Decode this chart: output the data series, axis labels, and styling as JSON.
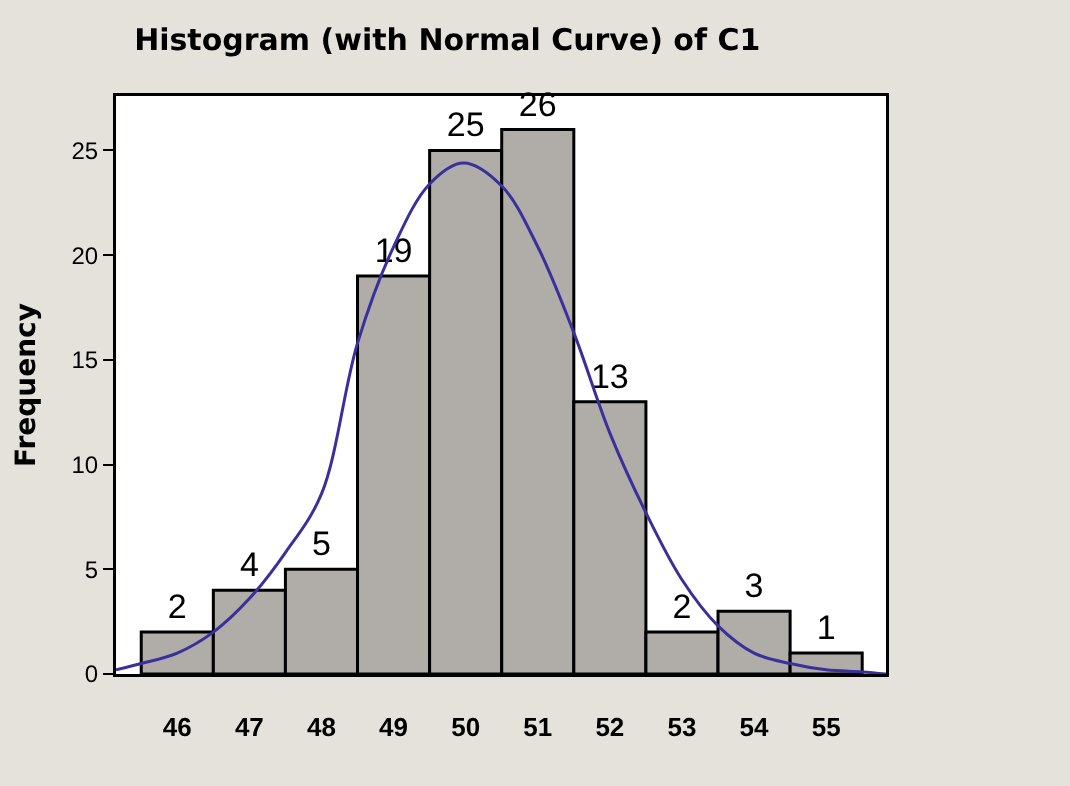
{
  "chart_data": {
    "type": "histogram",
    "title": "Histogram (with Normal Curve) of C1",
    "ylabel": "Frequency",
    "bins": [
      45.5,
      46.5,
      47.5,
      48.5,
      49.5,
      50.5,
      51.5,
      52.5,
      53.5,
      54.5,
      55.5
    ],
    "values": [
      2,
      4,
      5,
      19,
      25,
      26,
      13,
      2,
      3,
      1
    ],
    "color": "#b0aca8",
    "value_labels": [
      "2",
      "4",
      "5",
      "19",
      "25",
      "26",
      "13",
      "2",
      "3",
      "1"
    ],
    "series": [
      {
        "type": "line",
        "color": "#3b2f9c",
        "x": [
          45.15,
          45.5,
          46,
          46.5,
          47,
          47.5,
          48,
          48.5,
          49,
          49.5,
          49.97,
          50.5,
          51,
          51.5,
          52,
          52.5,
          53,
          53.5,
          54,
          54.5,
          55,
          55.5,
          55.83
        ],
        "values": [
          0.2,
          0.5,
          1.0,
          2.0,
          3.6,
          5.8,
          8.6,
          15.8,
          20.4,
          23.4,
          24.4,
          23.3,
          20.4,
          16.3,
          11.5,
          7.7,
          4.5,
          2.3,
          1.0,
          0.5,
          0.2,
          0.1,
          0.0
        ]
      }
    ],
    "xlim": [
      45.15,
      55.83
    ],
    "ylim": [
      0,
      27.6
    ],
    "xticks": [
      46,
      47,
      48,
      49,
      50,
      51,
      52,
      53,
      54,
      55
    ],
    "yticks": [
      0,
      5,
      10,
      15,
      20,
      25
    ],
    "grid": false,
    "marker": "none",
    "line_style": "solid"
  }
}
